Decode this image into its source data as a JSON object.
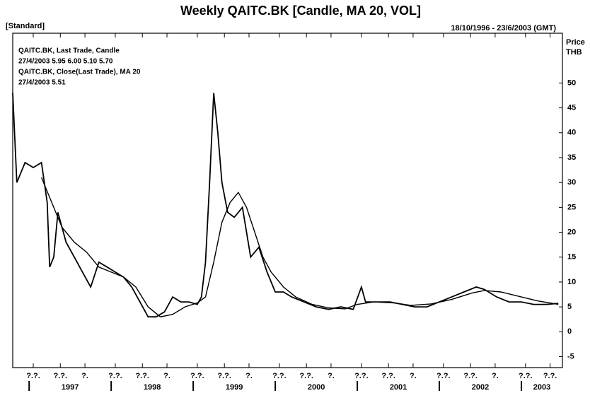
{
  "chart_data": {
    "type": "line",
    "title": "Weekly QAITC.BK [Candle, MA 20, VOL]",
    "subtitle": "[Standard]",
    "date_range": "18/10/1996 - 23/6/2003 (GMT)",
    "annotations": [
      "QAITC.BK, Last Trade, Candle",
      "27/4/2003 5.95 6.00 5.10 5.70",
      "QAITC.BK, Close(Last Trade), MA 20",
      "27/4/2003 5.51"
    ],
    "y_label": [
      "Price",
      "THB"
    ],
    "xlim": [
      1996.8,
      2003.5
    ],
    "ylim": [
      -7.2,
      60
    ],
    "yticks": [
      -5,
      0,
      5,
      10,
      15,
      20,
      25,
      30,
      35,
      40,
      45,
      50
    ],
    "xticks": [
      1997,
      1998,
      1999,
      2000,
      2001,
      2002,
      2003
    ],
    "xminor": [
      {
        "value": 1997.05,
        "label": "?.?."
      },
      {
        "value": 1997.38,
        "label": "?.?."
      },
      {
        "value": 1997.68,
        "label": "?."
      },
      {
        "value": 1998.05,
        "label": "?.?."
      },
      {
        "value": 1998.38,
        "label": "?.?."
      },
      {
        "value": 1998.68,
        "label": "?."
      },
      {
        "value": 1999.05,
        "label": "?.?."
      },
      {
        "value": 1999.38,
        "label": "?.?."
      },
      {
        "value": 1999.68,
        "label": "?."
      },
      {
        "value": 2000.05,
        "label": "?.?."
      },
      {
        "value": 2000.38,
        "label": "?.?."
      },
      {
        "value": 2000.68,
        "label": "?."
      },
      {
        "value": 2001.05,
        "label": "?.?."
      },
      {
        "value": 2001.38,
        "label": "?.?."
      },
      {
        "value": 2001.68,
        "label": "?."
      },
      {
        "value": 2002.05,
        "label": "?.?."
      },
      {
        "value": 2002.38,
        "label": "?.?."
      },
      {
        "value": 2002.68,
        "label": "?."
      },
      {
        "value": 2003.05,
        "label": "?.?."
      },
      {
        "value": 2003.35,
        "label": "?.?."
      }
    ],
    "series": [
      {
        "name": "Last Trade",
        "color": "#000000",
        "x": [
          1996.8,
          1996.85,
          1996.95,
          1997.05,
          1997.15,
          1997.22,
          1997.25,
          1997.3,
          1997.35,
          1997.45,
          1997.55,
          1997.65,
          1997.75,
          1997.85,
          1997.95,
          1998.05,
          1998.15,
          1998.25,
          1998.35,
          1998.45,
          1998.55,
          1998.65,
          1998.75,
          1998.85,
          1998.95,
          1999.05,
          1999.1,
          1999.15,
          1999.2,
          1999.25,
          1999.3,
          1999.35,
          1999.42,
          1999.5,
          1999.6,
          1999.7,
          1999.8,
          1999.9,
          2000.0,
          2000.1,
          2000.2,
          2000.35,
          2000.5,
          2000.65,
          2000.8,
          2000.95,
          2001.05,
          2001.1,
          2001.25,
          2001.4,
          2001.55,
          2001.7,
          2001.85,
          2002.0,
          2002.15,
          2002.3,
          2002.45,
          2002.55,
          2002.7,
          2002.85,
          2003.0,
          2003.15,
          2003.3,
          2003.45
        ],
        "values": [
          48,
          30,
          34,
          33,
          34,
          26,
          13,
          15,
          24,
          18,
          15,
          12,
          9,
          14,
          13,
          12,
          11,
          9,
          6,
          3,
          3,
          4,
          7,
          6,
          6,
          5.5,
          7,
          14,
          30,
          48,
          40,
          30,
          24,
          23,
          25,
          15,
          17,
          12,
          8,
          8,
          7,
          6,
          5,
          4.5,
          5,
          4.5,
          9,
          6,
          6,
          6,
          5.5,
          5,
          5,
          6,
          7,
          8,
          9,
          8.5,
          7,
          6,
          6,
          5.5,
          5.5,
          5.7
        ]
      },
      {
        "name": "MA 20",
        "color": "#000000",
        "x": [
          1997.15,
          1997.3,
          1997.4,
          1997.55,
          1997.7,
          1997.85,
          1998.0,
          1998.15,
          1998.3,
          1998.45,
          1998.6,
          1998.75,
          1998.9,
          1999.05,
          1999.15,
          1999.25,
          1999.35,
          1999.45,
          1999.55,
          1999.65,
          1999.75,
          1999.85,
          1999.95,
          2000.1,
          2000.25,
          2000.45,
          2000.65,
          2000.85,
          2001.0,
          2001.2,
          2001.45,
          2001.65,
          2001.9,
          2002.15,
          2002.4,
          2002.55,
          2002.75,
          2003.0,
          2003.2,
          2003.45
        ],
        "values": [
          31,
          25,
          21,
          18,
          16,
          13,
          12,
          11,
          9,
          5,
          3,
          3.5,
          5,
          5.8,
          7,
          14,
          22,
          26,
          28,
          25,
          20,
          15,
          12,
          9,
          7,
          5.5,
          4.8,
          4.6,
          5.5,
          6,
          5.8,
          5.3,
          5.6,
          6.5,
          7.8,
          8.3,
          8,
          7,
          6.2,
          5.5
        ]
      }
    ]
  }
}
